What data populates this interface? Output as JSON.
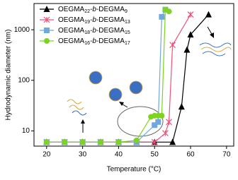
{
  "chart_data": {
    "type": "line",
    "y_label": "Hydrodynamic diameter (nm)",
    "x_label": "Temperature (°C)",
    "xlim": [
      16.5,
      72
    ],
    "xticks": [
      20,
      30,
      40,
      50,
      60,
      70
    ],
    "ylim": [
      5,
      3300
    ],
    "yticks": [
      10,
      100,
      1000
    ],
    "y_scale": "log",
    "grid": false,
    "legend": "upper left",
    "series": [
      {
        "name": "OEGMA22-b-DEGMA9",
        "color": "#000000",
        "marker": "triangle",
        "x": [
          20,
          25,
          30,
          35,
          40,
          45,
          50,
          55,
          57.5,
          59,
          60,
          65
        ],
        "values": [
          6,
          6,
          6,
          6,
          6,
          6,
          6,
          6,
          30,
          400,
          800,
          2000
        ]
      },
      {
        "name": "OEGMA19-b-DEGMA13",
        "color": "#f0507a",
        "marker": "x",
        "x": [
          20,
          25,
          30,
          35,
          40,
          45,
          50,
          53,
          54,
          55,
          60
        ],
        "values": [
          6,
          6,
          6,
          6,
          6,
          6,
          6,
          9,
          15,
          500,
          2000
        ]
      },
      {
        "name": "OEGMA18-b-DEGMA15",
        "color": "#6fa8dc",
        "marker": "square",
        "x": [
          20,
          25,
          30,
          35,
          40,
          45,
          50,
          51,
          52,
          53
        ],
        "values": [
          6,
          6,
          6,
          6,
          6,
          6,
          13,
          15,
          1800,
          2500
        ]
      },
      {
        "name": "OEGMA16-b-DEGMA17",
        "color": "#7ed321",
        "marker": "circle",
        "x": [
          20,
          25,
          30,
          35,
          40,
          45,
          49,
          50,
          51,
          52,
          53,
          54
        ],
        "values": [
          6,
          6,
          6,
          6,
          6,
          6.5,
          19,
          20,
          20,
          20,
          2500,
          2300
        ]
      }
    ]
  }
}
